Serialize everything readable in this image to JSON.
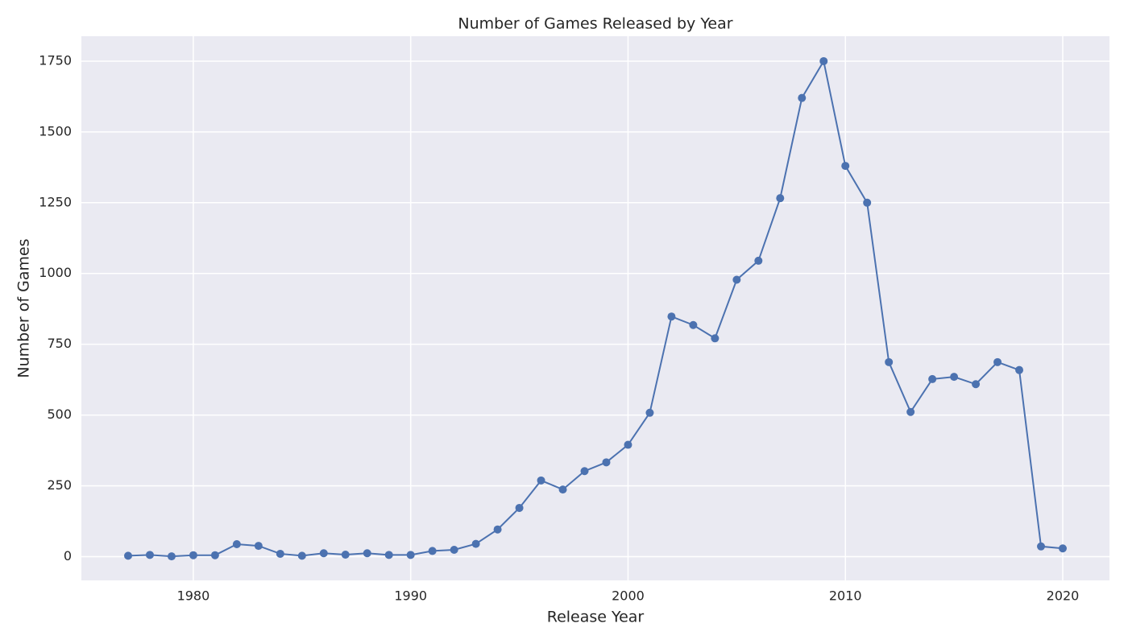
{
  "chart_data": {
    "type": "line",
    "title": "Number of Games Released by Year",
    "x_label": "Release Year",
    "y_label": "Number of Games",
    "x": [
      1977,
      1978,
      1979,
      1980,
      1981,
      1982,
      1983,
      1984,
      1985,
      1986,
      1987,
      1988,
      1989,
      1990,
      1991,
      1992,
      1993,
      1994,
      1995,
      1996,
      1997,
      1998,
      1999,
      2000,
      2001,
      2002,
      2003,
      2004,
      2005,
      2006,
      2007,
      2008,
      2009,
      2010,
      2011,
      2012,
      2013,
      2014,
      2015,
      2016,
      2017,
      2018,
      2019,
      2020
    ],
    "series": [
      {
        "name": "Number of Games",
        "color": "#4c72b0",
        "values": [
          3,
          6,
          1,
          5,
          5,
          44,
          38,
          10,
          3,
          12,
          7,
          12,
          6,
          6,
          20,
          24,
          45,
          96,
          172,
          269,
          237,
          302,
          333,
          395,
          508,
          848,
          818,
          771,
          978,
          1045,
          1266,
          1620,
          1750,
          1380,
          1250,
          687,
          511,
          627,
          635,
          609,
          687,
          659,
          36,
          29
        ]
      }
    ],
    "xlim": [
      1974.85,
      2022.15
    ],
    "xticks": [
      1980,
      1990,
      2000,
      2010,
      2020
    ],
    "ylim": [
      -84,
      1838
    ],
    "yticks": [
      0,
      250,
      500,
      750,
      1000,
      1250,
      1500,
      1750
    ],
    "grid": true
  }
}
